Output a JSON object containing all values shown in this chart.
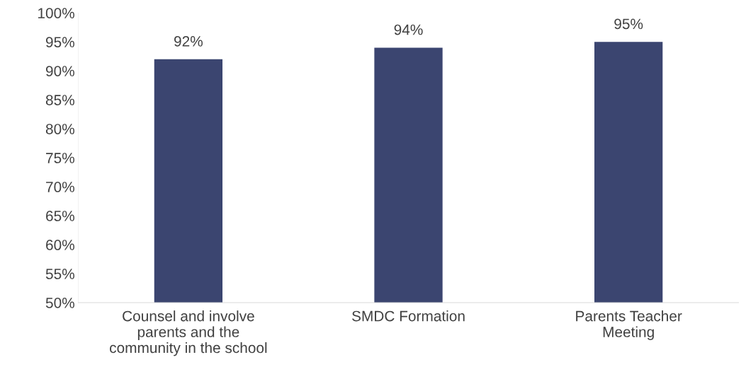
{
  "chart_data": {
    "type": "bar",
    "categories": [
      "Counsel and involve\nparents and the\ncommunity in the school",
      "SMDC Formation",
      "Parents Teacher\nMeeting"
    ],
    "values": [
      92,
      94,
      95
    ],
    "color": "#3b4570",
    "value_labels": [
      "92%",
      "94%",
      "95%"
    ],
    "ylim": [
      50,
      100
    ],
    "yticks": [
      {
        "value": 50,
        "label": "50%"
      },
      {
        "value": 55,
        "label": "55%"
      },
      {
        "value": 60,
        "label": "60%"
      },
      {
        "value": 65,
        "label": "65%"
      },
      {
        "value": 70,
        "label": "70%"
      },
      {
        "value": 75,
        "label": "75%"
      },
      {
        "value": 80,
        "label": "80%"
      },
      {
        "value": 85,
        "label": "85%"
      },
      {
        "value": 90,
        "label": "90%"
      },
      {
        "value": 95,
        "label": "95%"
      },
      {
        "value": 100,
        "label": "100%"
      }
    ],
    "grid": false,
    "legend": false
  }
}
